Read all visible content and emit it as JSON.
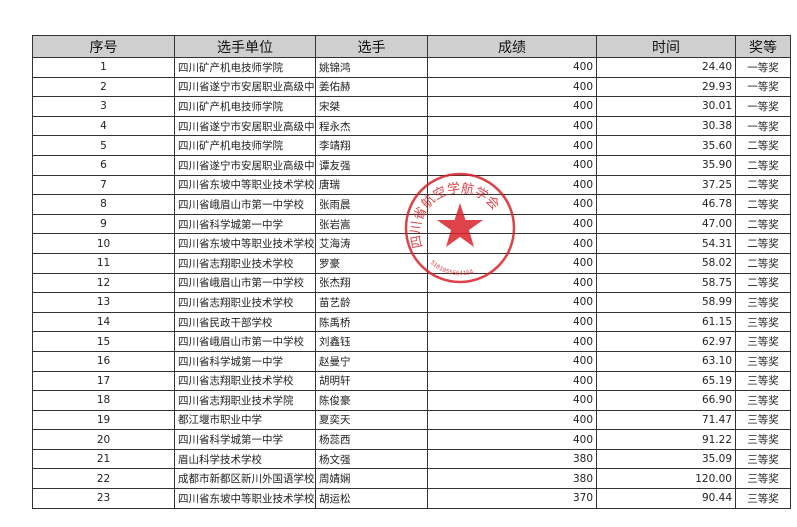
{
  "headers": [
    "序号",
    "选手单位",
    "选手",
    "成绩",
    "时间",
    "奖等"
  ],
  "rows": [
    [
      "1",
      "四川矿产机电技师学院",
      "姚锦鸿",
      "400",
      "24.40",
      "一等奖"
    ],
    [
      "2",
      "四川省遂宁市安居职业高级中",
      "姜佑赫",
      "400",
      "29.93",
      "一等奖"
    ],
    [
      "3",
      "四川矿产机电技师学院",
      "宋桀",
      "400",
      "30.01",
      "一等奖"
    ],
    [
      "4",
      "四川省遂宁市安居职业高级中",
      "程永杰",
      "400",
      "30.38",
      "一等奖"
    ],
    [
      "5",
      "四川矿产机电技师学院",
      "李靖翔",
      "400",
      "35.60",
      "二等奖"
    ],
    [
      "6",
      "四川省遂宁市安居职业高级中",
      "谭友强",
      "400",
      "35.90",
      "二等奖"
    ],
    [
      "7",
      "四川省东坡中等职业技术学校",
      "唐瑞",
      "400",
      "37.25",
      "二等奖"
    ],
    [
      "8",
      "四川省峨眉山市第一中学校",
      "张雨晨",
      "400",
      "46.78",
      "二等奖"
    ],
    [
      "9",
      "四川省科学城第一中学",
      "张岩嵩",
      "400",
      "47.00",
      "二等奖"
    ],
    [
      "10",
      "四川省东坡中等职业技术学校",
      "艾海涛",
      "400",
      "54.31",
      "二等奖"
    ],
    [
      "11",
      "四川省志翔职业技术学校",
      "罗豪",
      "400",
      "58.02",
      "二等奖"
    ],
    [
      "12",
      "四川省峨眉山市第一中学校",
      "张杰翔",
      "400",
      "58.75",
      "二等奖"
    ],
    [
      "13",
      "四川省志翔职业技术学校",
      "苗艺龄",
      "400",
      "58.99",
      "三等奖"
    ],
    [
      "14",
      "四川省民政干部学校",
      "陈禹桥",
      "400",
      "61.15",
      "三等奖"
    ],
    [
      "15",
      "四川省峨眉山市第一中学校",
      "刘鑫钰",
      "400",
      "62.97",
      "三等奖"
    ],
    [
      "16",
      "四川省科学城第一中学",
      "赵曼宁",
      "400",
      "63.10",
      "三等奖"
    ],
    [
      "17",
      "四川省志翔职业技术学校",
      "胡明轩",
      "400",
      "65.19",
      "三等奖"
    ],
    [
      "18",
      "四川省志翔职业技术学院",
      "陈俊豪",
      "400",
      "66.90",
      "三等奖"
    ],
    [
      "19",
      "都江堰市职业中学",
      "夏奕天",
      "400",
      "71.47",
      "三等奖"
    ],
    [
      "20",
      "四川省科学城第一中学",
      "杨蕊西",
      "400",
      "91.22",
      "三等奖"
    ],
    [
      "21",
      "眉山科学技术学校",
      "杨文强",
      "380",
      "35.09",
      "三等奖"
    ],
    [
      "22",
      "成都市新都区新川外国语学校",
      "周婧娴",
      "380",
      "120.00",
      "三等奖"
    ],
    [
      "23",
      "四川省东坡中等职业技术学校",
      "胡运松",
      "370",
      "90.44",
      "三等奖"
    ]
  ],
  "stamp": {
    "text": "四川省航空学航学会",
    "number": "5101055664164",
    "color": "#d8232a"
  }
}
